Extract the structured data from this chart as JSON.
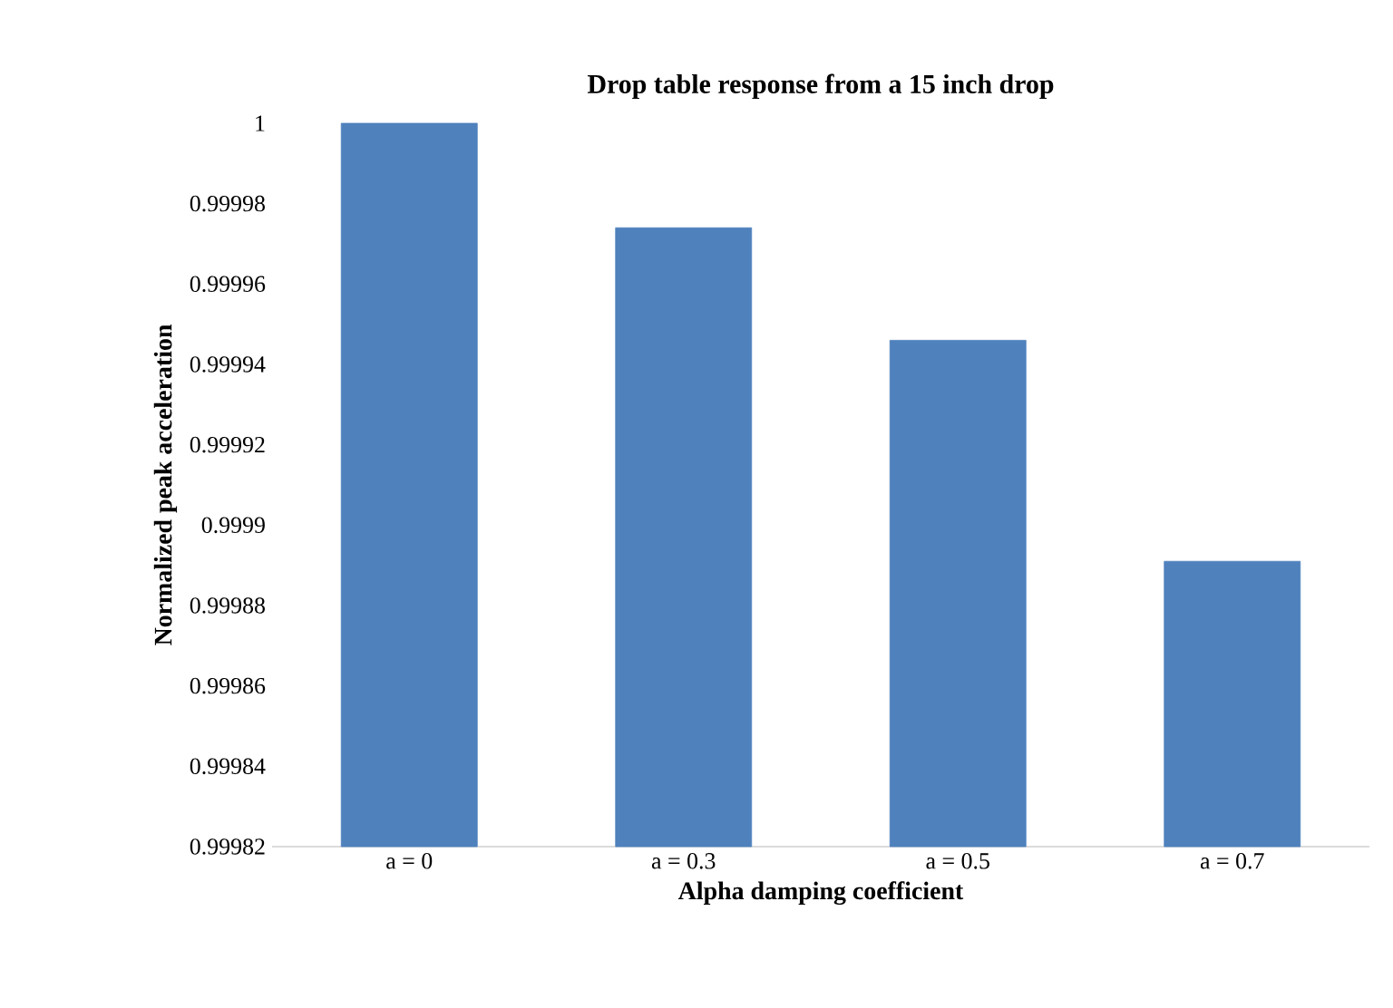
{
  "chart_data": {
    "type": "bar",
    "title": "Drop table response from a 15 inch drop",
    "xlabel": "Alpha damping coefficient",
    "ylabel": "Normalized peak acceleration",
    "categories": [
      "a = 0",
      "a = 0.3",
      "a = 0.5",
      "a = 0.7"
    ],
    "values": [
      1,
      0.999974,
      0.999946,
      0.999891
    ],
    "color": "#4f81bd",
    "ylim": [
      0.99982,
      1
    ],
    "yticks": [
      0.99982,
      0.99984,
      0.99986,
      0.99988,
      0.9999,
      0.99992,
      0.99994,
      0.99996,
      0.99998,
      1
    ],
    "grid": false
  }
}
